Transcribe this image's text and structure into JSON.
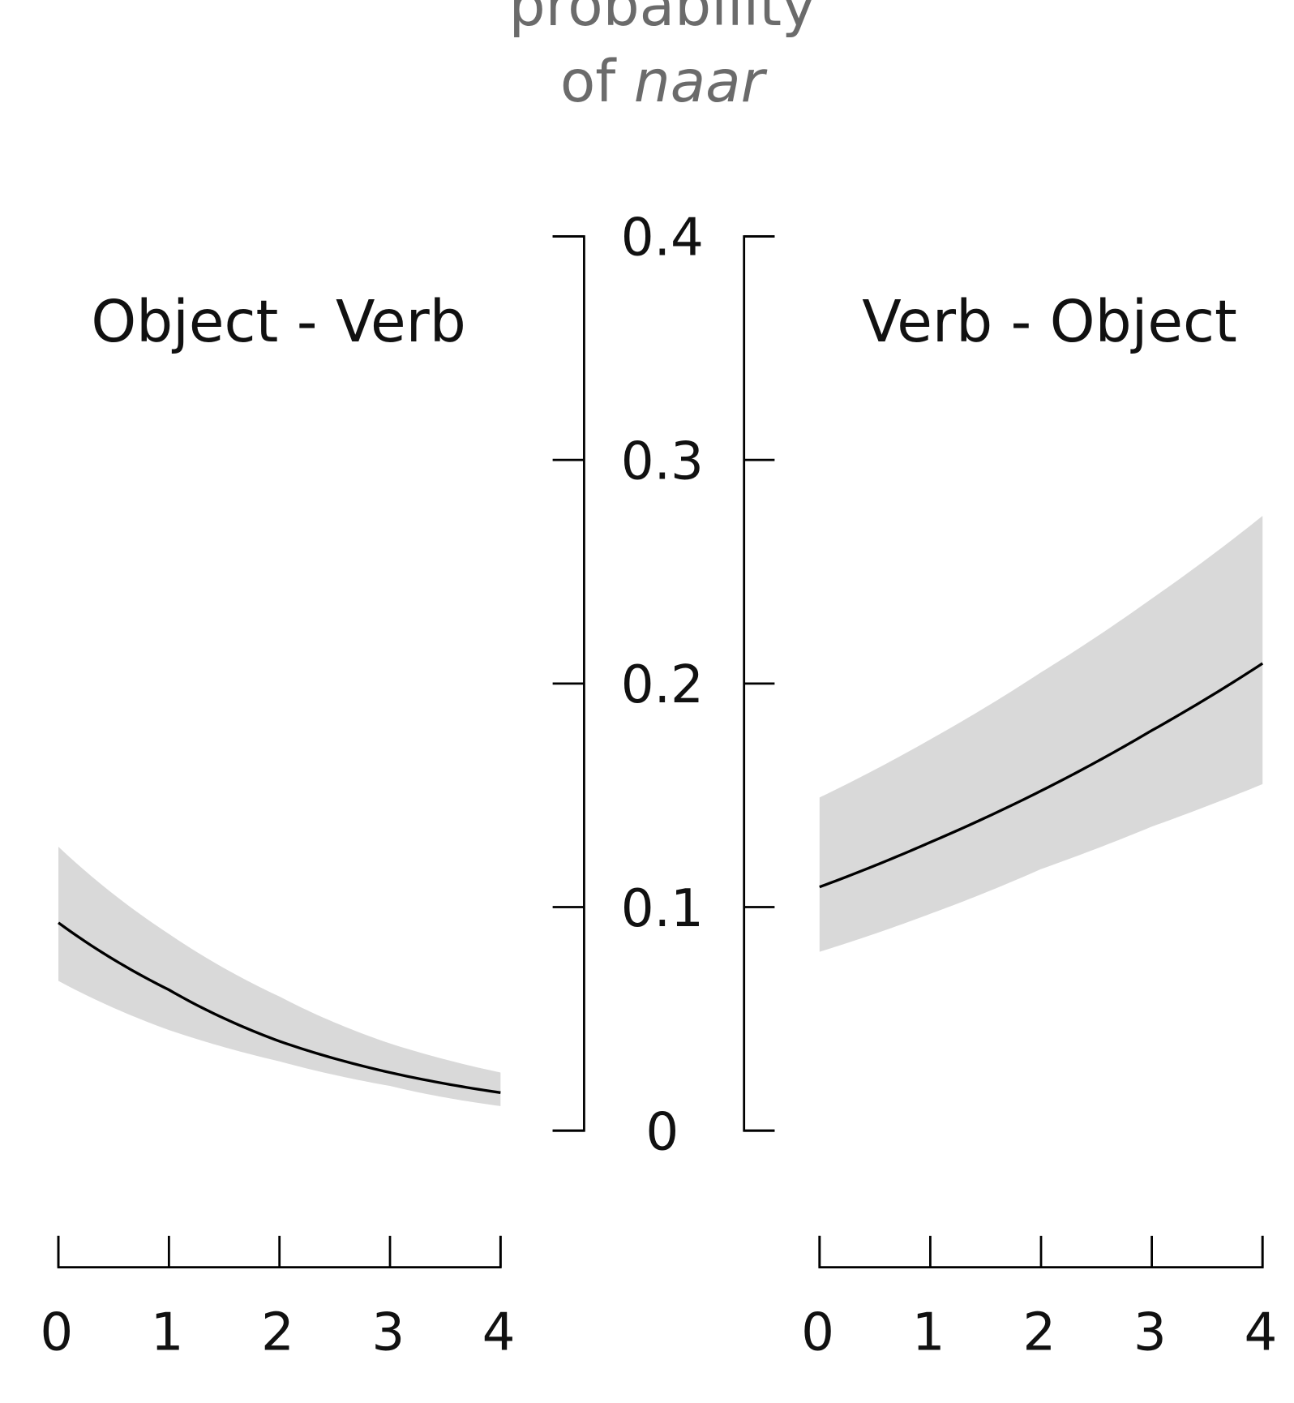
{
  "chart_data": [
    {
      "type": "line",
      "title": "Object - Verb",
      "x": [
        0,
        1,
        2,
        3,
        4
      ],
      "xlim": [
        0,
        4
      ],
      "ylim": [
        0,
        0.4
      ],
      "xticks": [
        "0",
        "1",
        "2",
        "3",
        "4"
      ],
      "series": [
        {
          "values": [
            0.093,
            0.063,
            0.04,
            0.026,
            0.017
          ],
          "ci_upper": [
            0.127,
            0.088,
            0.06,
            0.039,
            0.026
          ],
          "ci_lower": [
            0.067,
            0.045,
            0.031,
            0.02,
            0.011
          ]
        }
      ]
    },
    {
      "type": "line",
      "title": "Verb - Object",
      "x": [
        0,
        1,
        2,
        3,
        4
      ],
      "xlim": [
        0,
        4
      ],
      "ylim": [
        0,
        0.4
      ],
      "xticks": [
        "0",
        "1",
        "2",
        "3",
        "4"
      ],
      "series": [
        {
          "values": [
            0.109,
            0.129,
            0.152,
            0.179,
            0.209
          ],
          "ci_upper": [
            0.149,
            0.175,
            0.205,
            0.238,
            0.275
          ],
          "ci_lower": [
            0.08,
            0.097,
            0.117,
            0.136,
            0.155
          ]
        }
      ]
    }
  ],
  "y_axis": {
    "label_line1": "probability",
    "label_line2_prefix": "of ",
    "label_line2_italic": "naar",
    "ticks": [
      "0",
      "0.1",
      "0.2",
      "0.3",
      "0.4"
    ],
    "values": [
      0,
      0.1,
      0.2,
      0.3,
      0.4
    ]
  },
  "colors": {
    "band": "#d9d9d9",
    "line": "#000000",
    "axis": "#000000",
    "title": "#6b6b6b"
  }
}
